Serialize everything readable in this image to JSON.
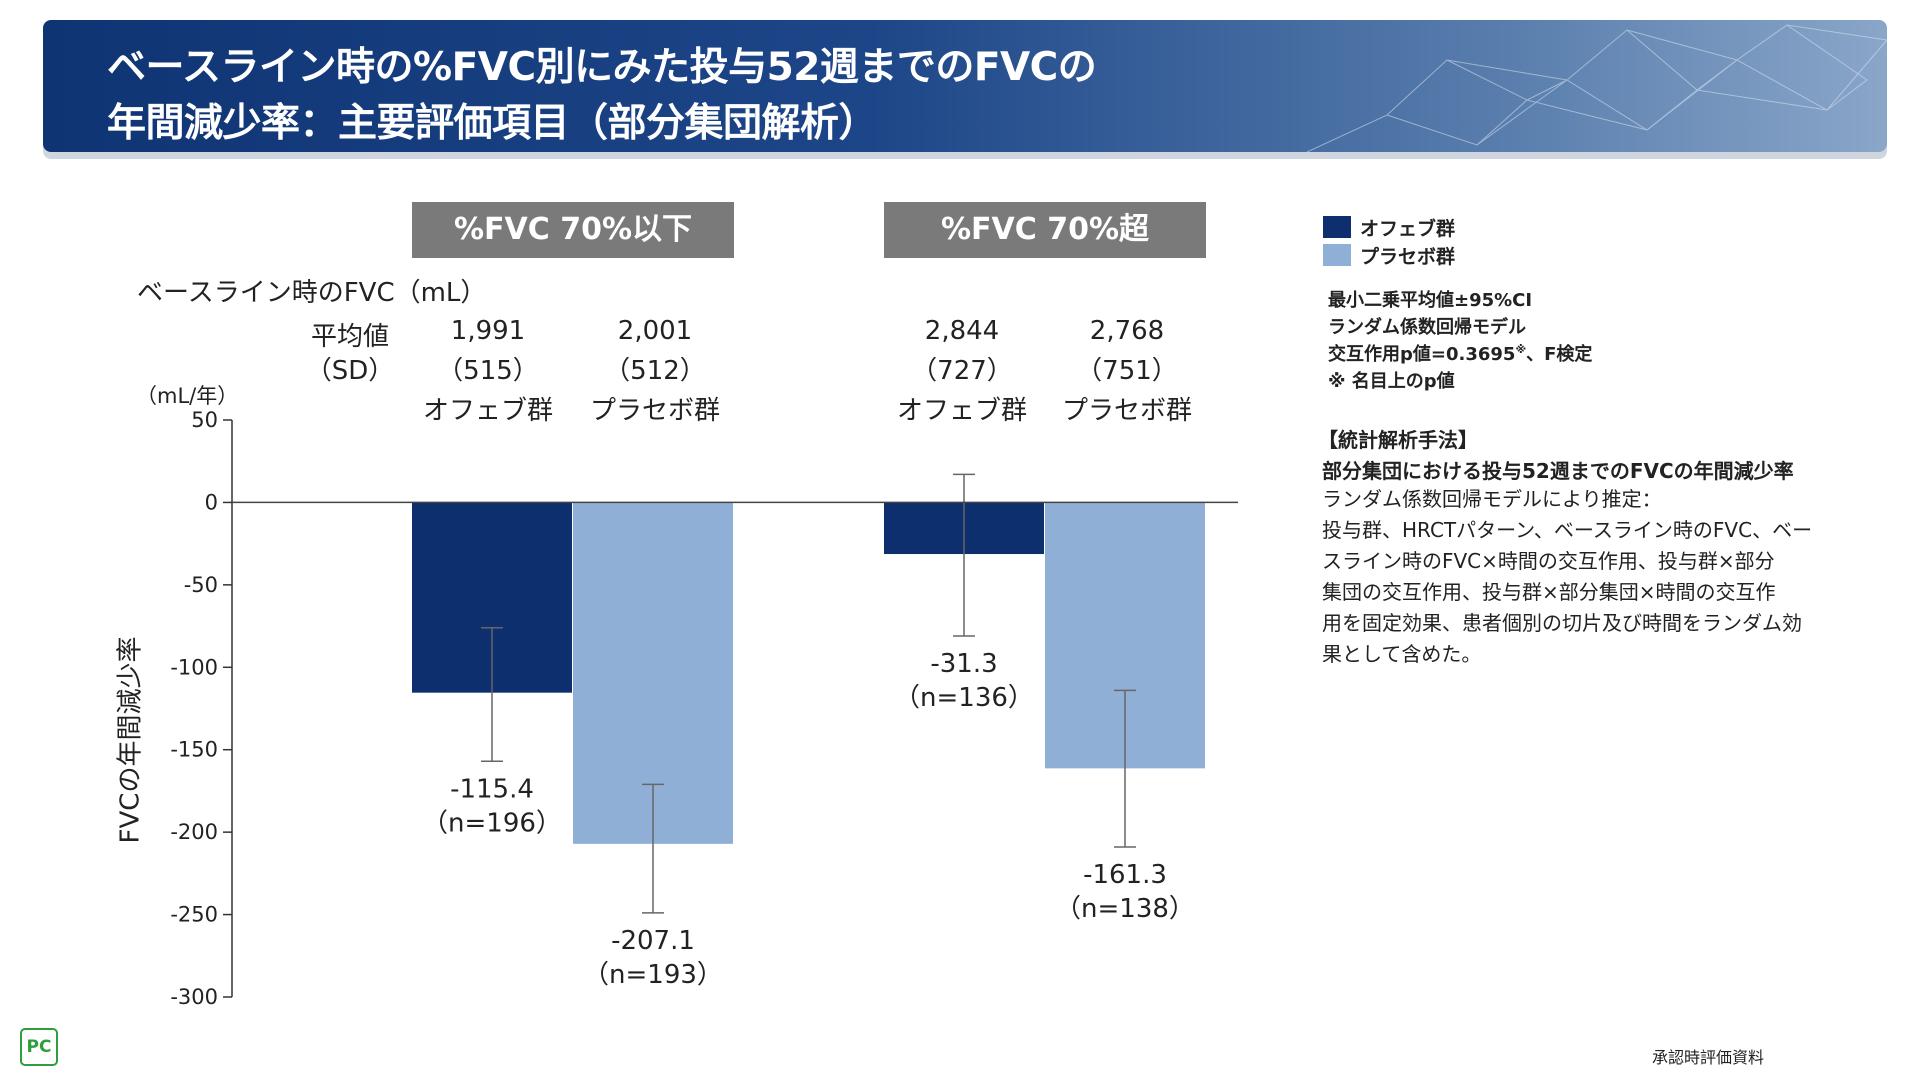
{
  "title": {
    "line1": "ベースライン時の%FVC別にみた投与52週までのFVCの",
    "line2": "年間減少率：主要評価項目（部分集団解析）"
  },
  "baseline": {
    "label": "ベースライン時のFVC（mL）",
    "mean_label": "平均値",
    "sd_label": "（SD）"
  },
  "legend": {
    "items": [
      {
        "label": "オフェブ群",
        "color": "#0d2f6e"
      },
      {
        "label": "プラセボ群",
        "color": "#8fafd6"
      }
    ]
  },
  "notes": {
    "line1": "最小二乗平均値±95%CI",
    "line2": "ランダム係数回帰モデル",
    "line3_main": "交互作用p値=0.3695",
    "line3_sup": "※",
    "line3_tail": "、F検定",
    "line4": "※ 名目上のp値"
  },
  "methods": {
    "heading": "【統計解析手法】",
    "subheading": "部分集団における投与52週までのFVCの年間減少率",
    "lines": [
      "ランダム係数回帰モデルにより推定：",
      "投与群、HRCTパターン、ベースライン時のFVC、ベー",
      "スライン時のFVC×時間の交互作用、投与群×部分",
      "集団の交互作用、投与群×部分集団×時間の交互作",
      "用を固定効果、患者個別の切片及び時間をランダム効",
      "果として含めた。"
    ]
  },
  "footer": {
    "right_text": "承認時評価資料",
    "logo_text": "PC"
  },
  "chart_data": {
    "type": "bar",
    "ylabel": "FVCの年間減少率",
    "yunit": "（mL/年）",
    "ylim": [
      -300,
      50
    ],
    "yticks": [
      50,
      0,
      -50,
      -100,
      -150,
      -200,
      -250,
      -300
    ],
    "groups": [
      {
        "name": "%FVC 70%以下",
        "bars": [
          {
            "series": "オフェブ群",
            "value": -115.4,
            "ci": [
              -157,
              -76
            ],
            "n_label": "（n=196）",
            "value_label": "-115.4",
            "baseline_mean": "1,991",
            "baseline_sd": "（515）",
            "bar_label": "オフェブ群"
          },
          {
            "series": "プラセボ群",
            "value": -207.1,
            "ci": [
              -249,
              -171
            ],
            "n_label": "（n=193）",
            "value_label": "-207.1",
            "baseline_mean": "2,001",
            "baseline_sd": "（512）",
            "bar_label": "プラセボ群"
          }
        ]
      },
      {
        "name": "%FVC 70%超",
        "bars": [
          {
            "series": "オフェブ群",
            "value": -31.3,
            "ci": [
              -81,
              17
            ],
            "n_label": "（n=136）",
            "value_label": "-31.3",
            "baseline_mean": "2,844",
            "baseline_sd": "（727）",
            "bar_label": "オフェブ群"
          },
          {
            "series": "プラセボ群",
            "value": -161.3,
            "ci": [
              -209,
              -114
            ],
            "n_label": "（n=138）",
            "value_label": "-161.3",
            "baseline_mean": "2,768",
            "baseline_sd": "（751）",
            "bar_label": "プラセボ群"
          }
        ]
      }
    ]
  }
}
